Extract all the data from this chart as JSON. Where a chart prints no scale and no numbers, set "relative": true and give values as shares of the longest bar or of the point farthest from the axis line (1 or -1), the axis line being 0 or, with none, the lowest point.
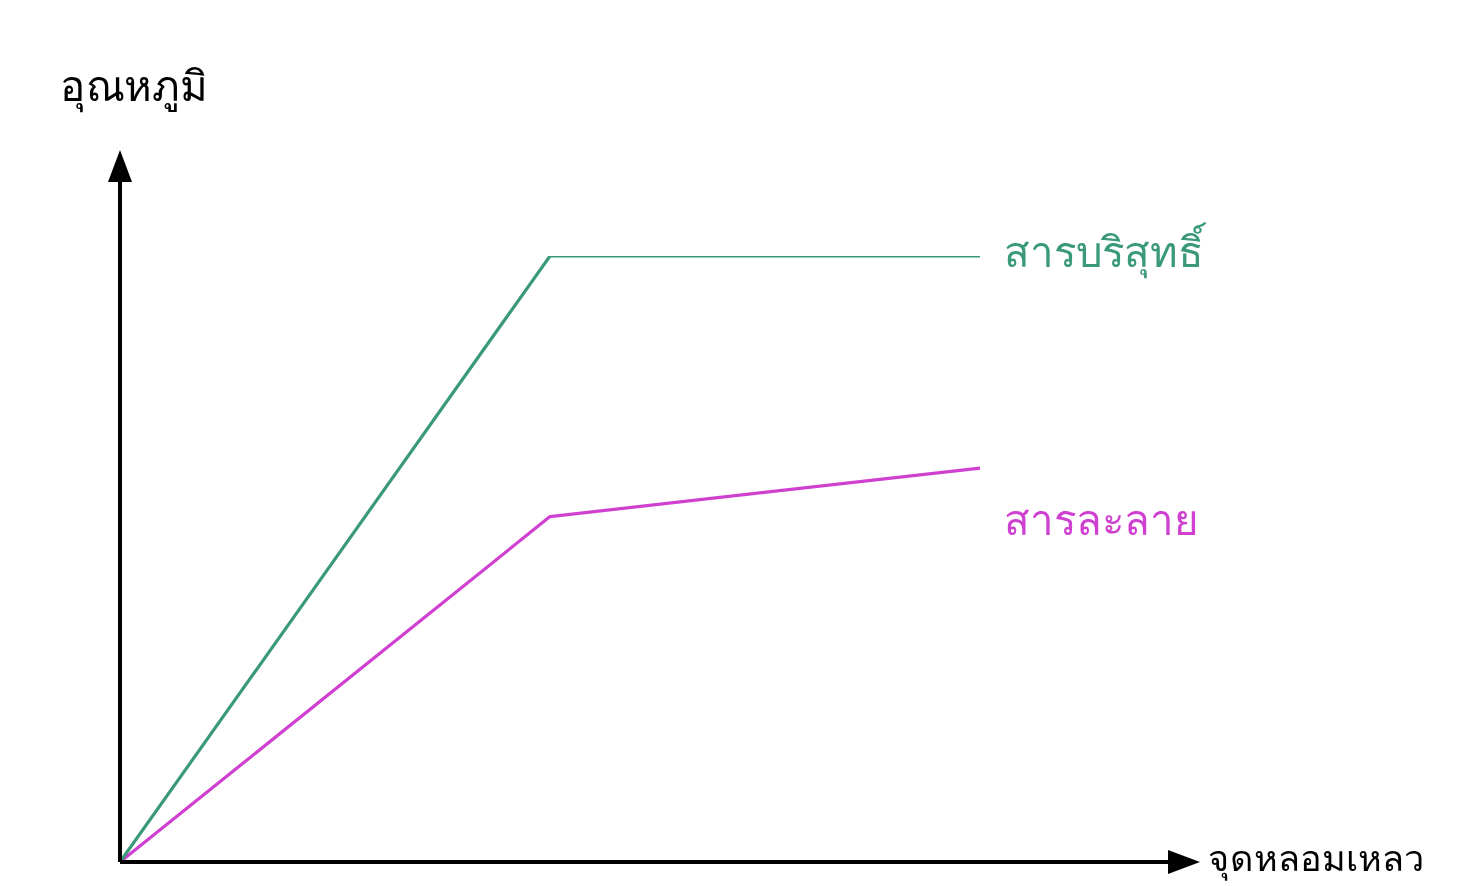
{
  "chart_data": {
    "type": "line",
    "relative": true,
    "xlabel": "จุดหลอมเหลว",
    "ylabel": "อุณหภูมิ",
    "categories": [
      null,
      null,
      null
    ],
    "marker": "none",
    "series": [
      {
        "name": "สารบริสุทธิ์",
        "color": "#3a9a78",
        "values": [
          0,
          1,
          1
        ]
      },
      {
        "name": "สารละลาย",
        "color": "#d040d0",
        "values": [
          0,
          0.57,
          0.65
        ]
      }
    ]
  }
}
